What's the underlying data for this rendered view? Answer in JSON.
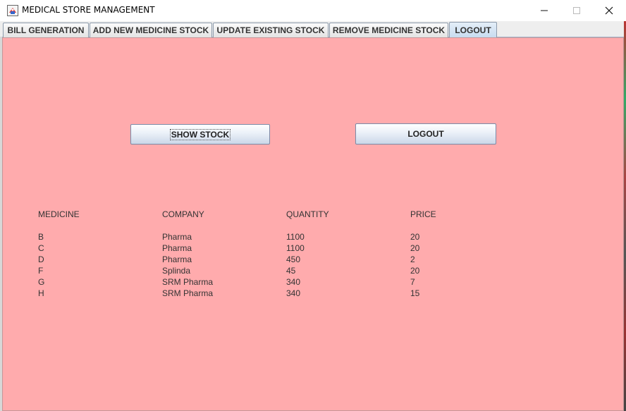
{
  "window": {
    "title": "MEDICAL STORE MANAGEMENT",
    "icon": "app-icon",
    "controls": {
      "minimize": "─",
      "maximize": "☐",
      "close": "✕"
    }
  },
  "tabs": [
    {
      "label": "BILL GENERATION",
      "active": false
    },
    {
      "label": "ADD NEW MEDICINE STOCK",
      "active": false
    },
    {
      "label": "UPDATE EXISTING STOCK",
      "active": false
    },
    {
      "label": "REMOVE MEDICINE STOCK",
      "active": false
    },
    {
      "label": "LOGOUT",
      "active": true
    }
  ],
  "buttons": {
    "show_stock": "SHOW STOCK",
    "logout": "LOGOUT"
  },
  "table": {
    "headers": [
      "MEDICINE",
      "COMPANY",
      "QUANTITY",
      "PRICE"
    ],
    "rows": [
      [
        "B",
        "Pharma",
        "1100",
        "20"
      ],
      [
        "C",
        "Pharma",
        "1100",
        "20"
      ],
      [
        "D",
        "Pharma",
        "450",
        "2"
      ],
      [
        "F",
        "Splinda",
        "45",
        "20"
      ],
      [
        "G",
        "SRM Pharma",
        "340",
        "7"
      ],
      [
        "H",
        "SRM Pharma",
        "340",
        "15"
      ]
    ]
  },
  "colors": {
    "panel_background": "#ffabad",
    "active_tab": "#c8dcf0"
  }
}
